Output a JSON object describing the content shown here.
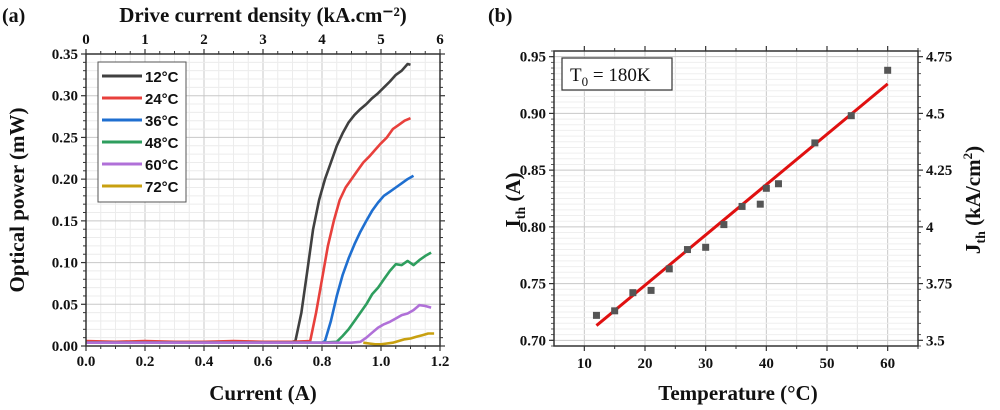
{
  "chart_data": [
    {
      "panel_label": "(a)",
      "type": "line",
      "title": "",
      "xlabel": "Current (A)",
      "ylabel": "Optical power (mW)",
      "top_xlabel": "Drive current density (kA.cm⁻²)",
      "xlim": [
        0.0,
        1.2
      ],
      "ylim": [
        0.0,
        0.35
      ],
      "top_xlim": [
        0,
        6
      ],
      "xticks": [
        "0.0",
        "0.2",
        "0.4",
        "0.6",
        "0.8",
        "1.0",
        "1.2"
      ],
      "yticks": [
        "0.00",
        "0.05",
        "0.10",
        "0.15",
        "0.20",
        "0.25",
        "0.30",
        "0.35"
      ],
      "top_xticks": [
        "0",
        "1",
        "2",
        "3",
        "4",
        "5",
        "6"
      ],
      "grid": true,
      "legend_position": "top-left",
      "series": [
        {
          "name": "12°C",
          "color": "#404040",
          "x": [
            0.0,
            0.1,
            0.2,
            0.3,
            0.4,
            0.5,
            0.6,
            0.7,
            0.71,
            0.73,
            0.75,
            0.77,
            0.79,
            0.81,
            0.83,
            0.85,
            0.87,
            0.89,
            0.91,
            0.93,
            0.95,
            0.97,
            0.99,
            1.01,
            1.03,
            1.05,
            1.07,
            1.09,
            1.1
          ],
          "y": [
            0.005,
            0.005,
            0.004,
            0.005,
            0.004,
            0.005,
            0.004,
            0.005,
            0.006,
            0.04,
            0.09,
            0.14,
            0.175,
            0.2,
            0.22,
            0.24,
            0.255,
            0.268,
            0.277,
            0.284,
            0.29,
            0.297,
            0.303,
            0.31,
            0.317,
            0.325,
            0.33,
            0.338,
            0.337
          ]
        },
        {
          "name": "24°C",
          "color": "#e8403c",
          "x": [
            0.0,
            0.1,
            0.2,
            0.3,
            0.4,
            0.5,
            0.6,
            0.7,
            0.76,
            0.78,
            0.8,
            0.82,
            0.84,
            0.86,
            0.88,
            0.9,
            0.92,
            0.94,
            0.96,
            0.98,
            1.0,
            1.02,
            1.04,
            1.06,
            1.08,
            1.1
          ],
          "y": [
            0.006,
            0.005,
            0.006,
            0.005,
            0.005,
            0.006,
            0.005,
            0.005,
            0.006,
            0.04,
            0.08,
            0.12,
            0.15,
            0.175,
            0.19,
            0.2,
            0.21,
            0.22,
            0.227,
            0.235,
            0.243,
            0.25,
            0.26,
            0.265,
            0.27,
            0.273
          ]
        },
        {
          "name": "36°C",
          "color": "#1f6fd0",
          "x": [
            0.0,
            0.2,
            0.4,
            0.6,
            0.8,
            0.81,
            0.83,
            0.85,
            0.87,
            0.89,
            0.91,
            0.93,
            0.95,
            0.97,
            0.99,
            1.01,
            1.03,
            1.05,
            1.07,
            1.09,
            1.11
          ],
          "y": [
            0.004,
            0.004,
            0.004,
            0.004,
            0.004,
            0.006,
            0.03,
            0.06,
            0.085,
            0.105,
            0.122,
            0.137,
            0.15,
            0.162,
            0.172,
            0.18,
            0.185,
            0.19,
            0.195,
            0.2,
            0.204
          ]
        },
        {
          "name": "48°C",
          "color": "#2e9e5e",
          "x": [
            0.0,
            0.4,
            0.8,
            0.85,
            0.87,
            0.89,
            0.91,
            0.93,
            0.95,
            0.97,
            0.99,
            1.01,
            1.03,
            1.05,
            1.07,
            1.09,
            1.11,
            1.13,
            1.15,
            1.17
          ],
          "y": [
            0.004,
            0.004,
            0.004,
            0.005,
            0.012,
            0.02,
            0.03,
            0.04,
            0.05,
            0.062,
            0.07,
            0.08,
            0.09,
            0.098,
            0.097,
            0.102,
            0.097,
            0.103,
            0.108,
            0.112
          ]
        },
        {
          "name": "60°C",
          "color": "#b070d8",
          "x": [
            0.0,
            0.5,
            0.85,
            0.9,
            0.93,
            0.95,
            0.97,
            0.99,
            1.01,
            1.03,
            1.05,
            1.07,
            1.09,
            1.11,
            1.13,
            1.15,
            1.17
          ],
          "y": [
            0.004,
            0.004,
            0.004,
            0.004,
            0.005,
            0.01,
            0.016,
            0.022,
            0.026,
            0.029,
            0.033,
            0.037,
            0.039,
            0.043,
            0.049,
            0.048,
            0.046
          ]
        },
        {
          "name": "72°C",
          "color": "#c8a010",
          "x": [
            0.94,
            0.96,
            0.98,
            1.0,
            1.02,
            1.04,
            1.06,
            1.08,
            1.1,
            1.12,
            1.14,
            1.16,
            1.18
          ],
          "y": [
            0.004,
            0.003,
            0.002,
            0.002,
            0.003,
            0.004,
            0.006,
            0.008,
            0.009,
            0.011,
            0.013,
            0.015,
            0.015
          ]
        }
      ]
    },
    {
      "panel_label": "(b)",
      "type": "scatter",
      "title": "",
      "xlabel": "Temperature (°C)",
      "ylabel": "I",
      "ylabel_sub": "th",
      "ylabel_suffix": " (A)",
      "right_ylabel": "J",
      "right_ylabel_sub": "th",
      "right_ylabel_suffix": " (kA/cm",
      "right_ylabel_sup": "2",
      "right_ylabel_end": ")",
      "xlim": [
        5,
        65
      ],
      "ylim": [
        0.695,
        0.955
      ],
      "right_ylim": [
        3.475,
        4.775
      ],
      "xticks": [
        "10",
        "20",
        "30",
        "40",
        "50",
        "60"
      ],
      "yticks": [
        "0.70",
        "0.75",
        "0.80",
        "0.85",
        "0.90",
        "0.95"
      ],
      "right_yticks": [
        "3.5",
        "3.75",
        "4",
        "4.25",
        "4.5",
        "4.75"
      ],
      "grid": true,
      "annotation": {
        "text": "T",
        "sub": "0",
        "suffix": " = 180K",
        "position": "top-left"
      },
      "points": {
        "color": "#555555",
        "x": [
          12,
          15,
          18,
          21,
          24,
          27,
          30,
          33,
          36,
          39,
          40,
          42,
          48,
          54,
          60
        ],
        "y": [
          0.722,
          0.726,
          0.742,
          0.744,
          0.763,
          0.78,
          0.782,
          0.802,
          0.818,
          0.82,
          0.834,
          0.838,
          0.874,
          0.898,
          0.938
        ]
      },
      "fit_line": {
        "color": "#e01010",
        "x": [
          12,
          60
        ],
        "y": [
          0.713,
          0.926
        ]
      }
    }
  ]
}
